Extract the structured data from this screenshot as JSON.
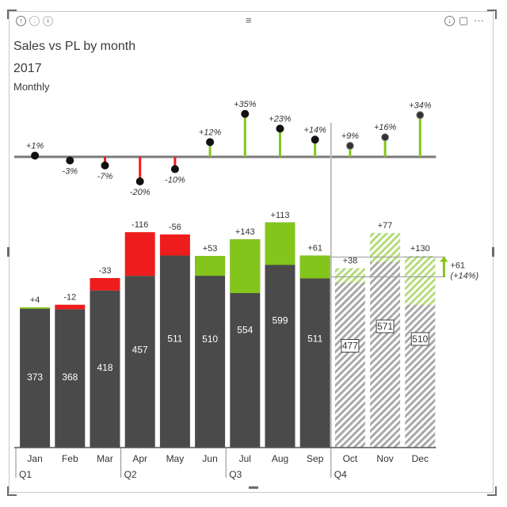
{
  "header": {
    "title": "Sales vs PL by month",
    "subtitle": "2017",
    "period_label": "Monthly",
    "focus_icon": "up-arrow-icon",
    "drill_icon": "drill-icon",
    "drillall_icon": "expand-all-icon",
    "download_icon": "download-icon",
    "focus_mode_icon": "focus-mode-icon",
    "more_glyph": "···",
    "drag_glyph": "≡"
  },
  "colors": {
    "actual": "#4a4a4a",
    "forecast_hatch": "#a9a9a9",
    "positive": "#84c51c",
    "positive_light": "#b7df7a",
    "negative": "#ee1c1c",
    "axis": "#8a8a8a",
    "text": "#333333"
  },
  "chart_data": [
    {
      "type": "bar",
      "name": "relative-variance",
      "categories": [
        "Jan",
        "Feb",
        "Mar",
        "Apr",
        "May",
        "Jun",
        "Jul",
        "Aug",
        "Sep",
        "Oct",
        "Nov",
        "Dec"
      ],
      "values": [
        1,
        -3,
        -7,
        -20,
        -10,
        12,
        35,
        23,
        14,
        9,
        16,
        34
      ],
      "labels": [
        "+1%",
        "-3%",
        "-7%",
        "-20%",
        "-10%",
        "+12%",
        "+35%",
        "+23%",
        "+14%",
        "+9%",
        "+16%",
        "+34%"
      ],
      "forecast_from_index": 9
    },
    {
      "type": "bar",
      "name": "absolute-values",
      "categories": [
        "Jan",
        "Feb",
        "Mar",
        "Apr",
        "May",
        "Jun",
        "Jul",
        "Aug",
        "Sep",
        "Oct",
        "Nov",
        "Dec"
      ],
      "quarters": [
        {
          "label": "Q1",
          "start": 0
        },
        {
          "label": "Q2",
          "start": 3
        },
        {
          "label": "Q3",
          "start": 6
        },
        {
          "label": "Q4",
          "start": 9
        }
      ],
      "base_values": [
        373,
        368,
        418,
        457,
        511,
        510,
        554,
        599,
        511,
        477,
        571,
        510
      ],
      "variance_values": [
        4,
        -12,
        -33,
        -116,
        -56,
        53,
        143,
        113,
        61,
        38,
        77,
        130
      ],
      "variance_labels": [
        "+4",
        "-12",
        "-33",
        "-116",
        "-56",
        "+53",
        "+143",
        "+113",
        "+61",
        "+38",
        "+77",
        "+130"
      ],
      "forecast_from_index": 9,
      "total_annotation": {
        "value": "+61",
        "percent": "(+14%)"
      }
    }
  ]
}
